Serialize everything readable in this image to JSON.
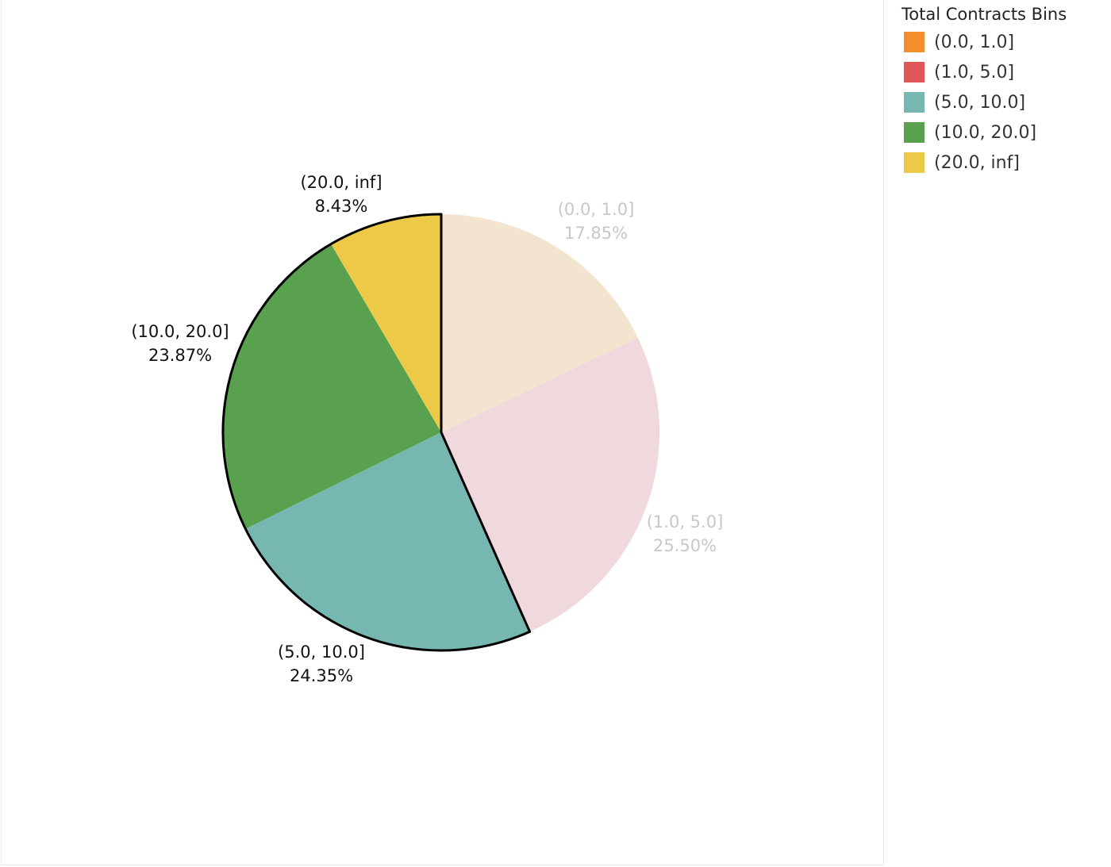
{
  "chart_data": {
    "type": "pie",
    "title": "",
    "legend": {
      "title": "Total Contracts Bins",
      "placement": "top-right"
    },
    "start": "top",
    "direction": "clockwise",
    "slices": [
      {
        "label": "(0.0, 1.0]",
        "value": 17.85,
        "display": "17.85%",
        "color": "#F28E2B",
        "faded_color": "#F3E4D0",
        "highlighted": false
      },
      {
        "label": "(1.0, 5.0]",
        "value": 25.5,
        "display": "25.50%",
        "color": "#E15759",
        "faded_color": "#F0D9DC",
        "highlighted": false
      },
      {
        "label": "(5.0, 10.0]",
        "value": 24.35,
        "display": "24.35%",
        "color": "#76B7B2",
        "faded_color": "#D9EBE9",
        "highlighted": true
      },
      {
        "label": "(10.0, 20.0]",
        "value": 23.87,
        "display": "23.87%",
        "color": "#59A14F",
        "faded_color": "#D5E7D3",
        "highlighted": true
      },
      {
        "label": "(20.0, inf]",
        "value": 8.43,
        "display": "8.43%",
        "color": "#EDC948",
        "faded_color": "#F9EFC8",
        "highlighted": true
      }
    ]
  }
}
